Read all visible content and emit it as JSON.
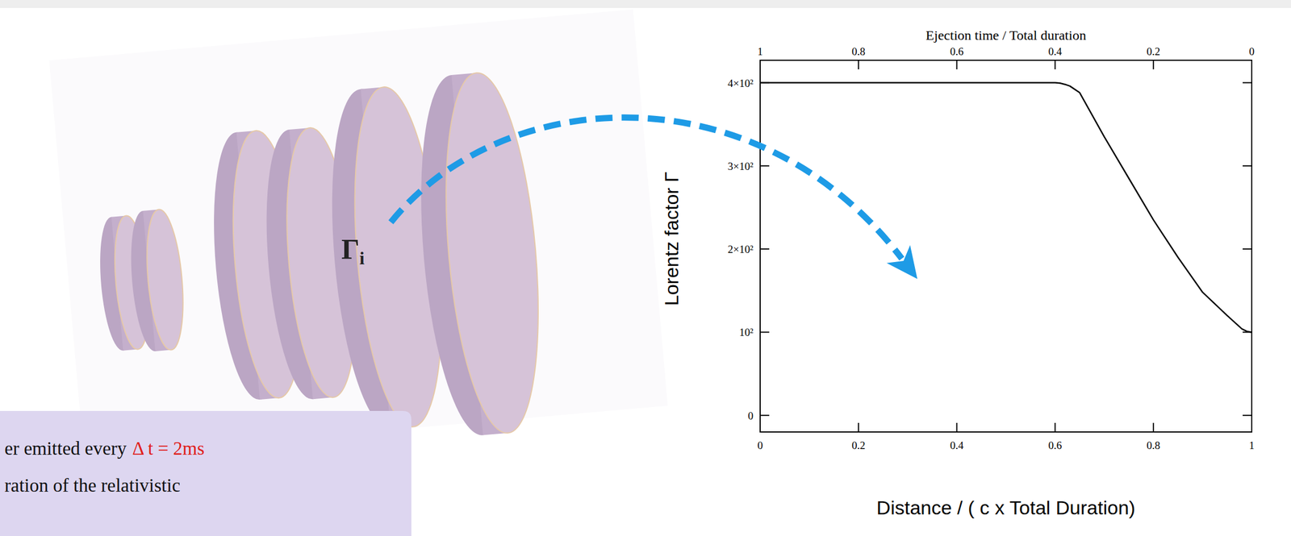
{
  "chart_data": {
    "type": "line",
    "x_label": "Distance / ( c x Total Duration)",
    "y_label": "Lorentz factor Γ",
    "x2_label": "Ejection time / Total duration",
    "x": [
      0,
      0.2,
      0.4,
      0.6,
      0.61,
      0.62,
      0.63,
      0.65,
      0.7,
      0.75,
      0.8,
      0.85,
      0.9,
      0.95,
      0.98,
      0.99,
      1
    ],
    "values": [
      400,
      400,
      400,
      400,
      399.5,
      398,
      396,
      388,
      335,
      285,
      235,
      190,
      148,
      120,
      104,
      101,
      100
    ],
    "color": "#000000",
    "xlim": [
      0,
      1
    ],
    "xticks": [
      0,
      0.2,
      0.4,
      0.6,
      0.8,
      1
    ],
    "x2lim": [
      1,
      0
    ],
    "x2ticks": [
      1,
      0.8,
      0.6,
      0.4,
      0.2,
      0
    ],
    "ylim": [
      -20,
      427
    ],
    "yticks": [
      0,
      {
        "value": 100,
        "label": "10²"
      },
      {
        "value": 200,
        "label": "2×10²"
      },
      {
        "value": 300,
        "label": "3×10²"
      },
      {
        "value": 400,
        "label": "4×10²"
      }
    ],
    "grid": false
  },
  "illustration": {
    "annotation": "Γi"
  },
  "caption": {
    "line1": "er emitted every",
    "line1_highlight": "Δ t = 2ms",
    "line2": "ration of the relativistic"
  }
}
